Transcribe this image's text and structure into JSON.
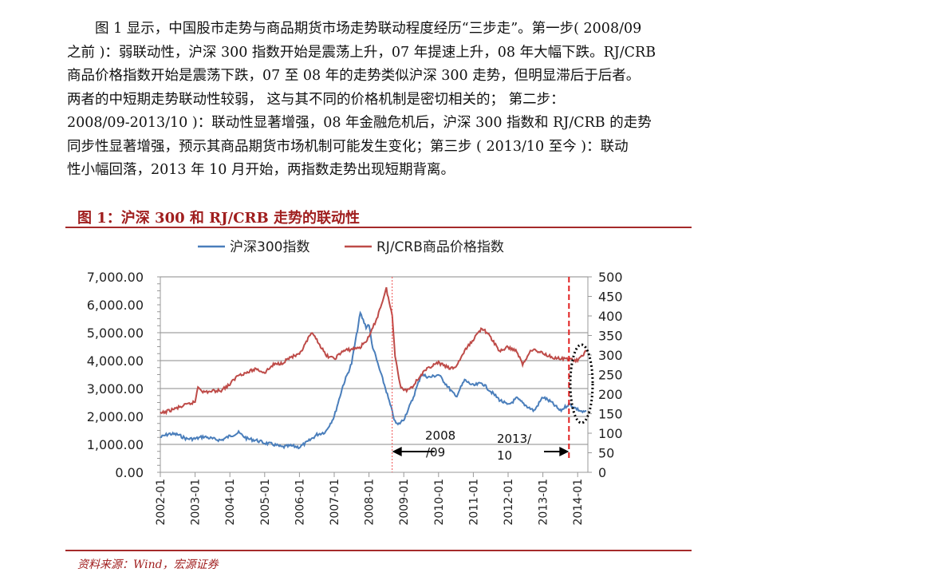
{
  "paragraph": {
    "lines": [
      "　　图 1 显示，中国股市走势与商品期货市场走势联动程度经历“三步走”。第一步( 2008/09",
      "之前 )：弱联动性，沪深 300 指数开始是震荡上升，07 年提速上升，08 年大幅下跌。RJ/CRB",
      "商品价格指数开始是震荡下跌，07 至 08 年的走势类似沪深 300 走势，但明显滞后于后者。",
      "两者的中短期走势联动性较弱， 这与其不同的价格机制是密切相关的； 第二步：",
      "2008/09-2013/10 )：联动性显著增强，08 年金融危机后，沪深 300 指数和 RJ/CRB 的走势",
      "同步性显著增强，预示其商品期货市场机制可能发生变化；第三步 ( 2013/10 至今 )：联动",
      "性小幅回落，2013 年 10 月开始，两指数走势出现短期背离。"
    ]
  },
  "figure": {
    "title": "图 1：沪深 300 和 RJ/CRB 走势的联动性",
    "source": "资料来源：Wind，宏源证券"
  },
  "chart_data": {
    "type": "line",
    "title": "",
    "legend_position": "top",
    "grid": true,
    "y_left": {
      "range": [
        0,
        7000
      ],
      "ticks": [
        "0.00",
        "1,000.00",
        "2,000.00",
        "3,000.00",
        "4,000.00",
        "5,000.00",
        "6,000.00",
        "7,000.00"
      ]
    },
    "y_right": {
      "range": [
        0,
        500
      ],
      "ticks": [
        "0",
        "50",
        "100",
        "150",
        "200",
        "250",
        "300",
        "350",
        "400",
        "450",
        "500"
      ]
    },
    "x_ticks": [
      "2002-01",
      "2003-01",
      "2004-01",
      "2005-01",
      "2006-01",
      "2007-01",
      "2008-01",
      "2009-01",
      "2010-01",
      "2011-01",
      "2012-01",
      "2013-01",
      "2014-01"
    ],
    "series": [
      {
        "name": "沪深300指数",
        "axis": "left",
        "color": "#4a7ebb",
        "points": [
          [
            "2002-01",
            1250
          ],
          [
            "2002-04",
            1380
          ],
          [
            "2002-07",
            1350
          ],
          [
            "2002-10",
            1200
          ],
          [
            "2003-01",
            1200
          ],
          [
            "2003-04",
            1280
          ],
          [
            "2003-07",
            1200
          ],
          [
            "2003-10",
            1150
          ],
          [
            "2004-01",
            1300
          ],
          [
            "2004-04",
            1420
          ],
          [
            "2004-07",
            1200
          ],
          [
            "2004-10",
            1150
          ],
          [
            "2005-01",
            1050
          ],
          [
            "2005-04",
            1000
          ],
          [
            "2005-07",
            900
          ],
          [
            "2005-10",
            950
          ],
          [
            "2006-01",
            900
          ],
          [
            "2006-04",
            1100
          ],
          [
            "2006-07",
            1350
          ],
          [
            "2006-10",
            1450
          ],
          [
            "2007-01",
            2000
          ],
          [
            "2007-04",
            3100
          ],
          [
            "2007-07",
            3900
          ],
          [
            "2007-10",
            5700
          ],
          [
            "2007-12",
            5200
          ],
          [
            "2008-01",
            5300
          ],
          [
            "2008-02",
            4600
          ],
          [
            "2008-04",
            3900
          ],
          [
            "2008-07",
            2900
          ],
          [
            "2008-10",
            1800
          ],
          [
            "2008-11",
            1700
          ],
          [
            "2009-01",
            1900
          ],
          [
            "2009-04",
            2600
          ],
          [
            "2009-07",
            3500
          ],
          [
            "2009-10",
            3400
          ],
          [
            "2010-01",
            3500
          ],
          [
            "2010-04",
            3100
          ],
          [
            "2010-07",
            2700
          ],
          [
            "2010-10",
            3300
          ],
          [
            "2011-01",
            3100
          ],
          [
            "2011-04",
            3200
          ],
          [
            "2011-07",
            2900
          ],
          [
            "2011-10",
            2600
          ],
          [
            "2012-01",
            2400
          ],
          [
            "2012-04",
            2650
          ],
          [
            "2012-07",
            2400
          ],
          [
            "2012-10",
            2200
          ],
          [
            "2013-01",
            2700
          ],
          [
            "2013-04",
            2500
          ],
          [
            "2013-07",
            2200
          ],
          [
            "2013-10",
            2450
          ],
          [
            "2014-01",
            2250
          ],
          [
            "2014-03",
            2150
          ],
          [
            "2014-04",
            2200
          ]
        ]
      },
      {
        "name": "RJ/CRB商品价格指数",
        "axis": "right",
        "color": "#be4b48",
        "points": [
          [
            "2002-01",
            150
          ],
          [
            "2002-07",
            165
          ],
          [
            "2003-01",
            180
          ],
          [
            "2003-02",
            220
          ],
          [
            "2003-04",
            205
          ],
          [
            "2003-10",
            210
          ],
          [
            "2004-01",
            225
          ],
          [
            "2004-04",
            250
          ],
          [
            "2004-07",
            255
          ],
          [
            "2004-10",
            265
          ],
          [
            "2005-01",
            255
          ],
          [
            "2005-04",
            275
          ],
          [
            "2005-07",
            280
          ],
          [
            "2005-10",
            295
          ],
          [
            "2006-01",
            300
          ],
          [
            "2006-05",
            355
          ],
          [
            "2006-07",
            340
          ],
          [
            "2006-10",
            300
          ],
          [
            "2007-01",
            290
          ],
          [
            "2007-04",
            310
          ],
          [
            "2007-07",
            315
          ],
          [
            "2007-10",
            320
          ],
          [
            "2008-01",
            345
          ],
          [
            "2008-04",
            400
          ],
          [
            "2008-07",
            470
          ],
          [
            "2008-09",
            400
          ],
          [
            "2008-10",
            300
          ],
          [
            "2008-12",
            215
          ],
          [
            "2009-02",
            210
          ],
          [
            "2009-04",
            220
          ],
          [
            "2009-07",
            250
          ],
          [
            "2009-10",
            270
          ],
          [
            "2010-01",
            280
          ],
          [
            "2010-05",
            265
          ],
          [
            "2010-07",
            270
          ],
          [
            "2010-10",
            310
          ],
          [
            "2011-01",
            340
          ],
          [
            "2011-04",
            370
          ],
          [
            "2011-07",
            345
          ],
          [
            "2011-10",
            310
          ],
          [
            "2012-01",
            320
          ],
          [
            "2012-04",
            310
          ],
          [
            "2012-06",
            275
          ],
          [
            "2012-09",
            315
          ],
          [
            "2013-01",
            305
          ],
          [
            "2013-04",
            295
          ],
          [
            "2013-07",
            290
          ],
          [
            "2013-10",
            290
          ],
          [
            "2014-01",
            285
          ],
          [
            "2014-04",
            310
          ]
        ]
      }
    ],
    "annotations": [
      {
        "text_line1": "2008",
        "text_line2": "/09",
        "at": "2008-09",
        "line_style": "dotted",
        "arrow": "left"
      },
      {
        "text_line1": "2013/",
        "text_line2": "10",
        "at": "2013-10",
        "line_style": "dashed",
        "arrow": "right"
      }
    ]
  }
}
